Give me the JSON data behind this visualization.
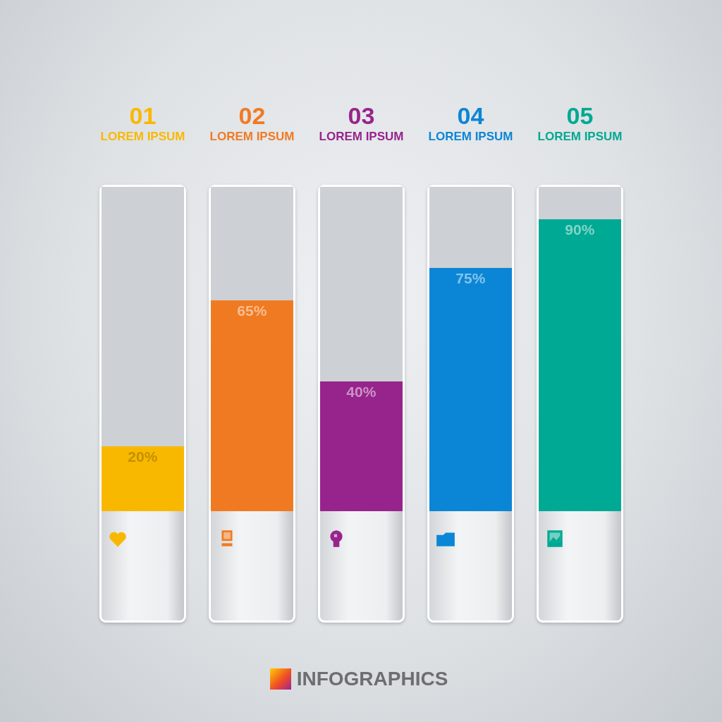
{
  "chart_data": {
    "type": "bar",
    "title": "INFOGRAPHICS",
    "categories": [
      "01\nLOREM IPSUM",
      "02\nLOREM IPSUM",
      "03\nLOREM IPSUM",
      "04\nLOREM IPSUM",
      "05\nLOREM IPSUM"
    ],
    "series": [
      {
        "colors": [
          "#f9b800",
          "#f07a22",
          "#97248c",
          "#0b86d6",
          "#00a993"
        ],
        "values": [
          20,
          65,
          40,
          75,
          90
        ],
        "value_labels": [
          "20%",
          "65%",
          "40%",
          "75%",
          "90%"
        ]
      },
      {
        "color": "#cdd0d4",
        "values": [
          80,
          35,
          60,
          25,
          10
        ]
      }
    ],
    "stacked": true,
    "ylim": [
      0,
      100
    ],
    "tick_labels": "x"
  }
}
